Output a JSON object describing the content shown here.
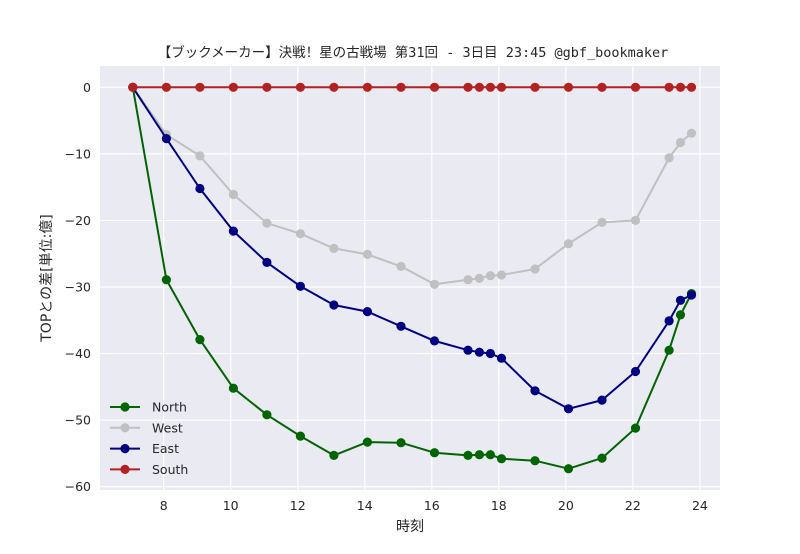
{
  "chart_data": {
    "type": "line",
    "title": "【ブックメーカー】決戦！星の古戦場 第31回 - 3日目 23:45 @gbf_bookmaker",
    "xlabel": "時刻",
    "ylabel": "TOPとの差[単位:億]",
    "xlim": [
      6.1,
      24.6
    ],
    "ylim": [
      -60.5,
      3.2
    ],
    "xticks": [
      8,
      10,
      12,
      14,
      16,
      18,
      20,
      22,
      24
    ],
    "yticks": [
      0,
      -10,
      -20,
      -30,
      -40,
      -50,
      -60
    ],
    "xtick_labels": [
      "8",
      "10",
      "12",
      "14",
      "16",
      "18",
      "20",
      "22",
      "24"
    ],
    "ytick_labels": [
      "0",
      "−10",
      "−20",
      "−30",
      "−40",
      "−50",
      "−60"
    ],
    "grid": true,
    "legend_position": "lower-left",
    "x": [
      7.08,
      8.08,
      9.08,
      10.08,
      11.08,
      12.08,
      13.08,
      14.08,
      15.08,
      16.08,
      17.08,
      17.42,
      17.75,
      18.08,
      19.08,
      20.08,
      21.08,
      22.08,
      23.08,
      23.42,
      23.75
    ],
    "series": [
      {
        "name": "North",
        "color": "#006400",
        "values": [
          0,
          -28.9,
          -37.9,
          -45.2,
          -49.2,
          -52.4,
          -55.3,
          -53.3,
          -53.4,
          -54.9,
          -55.3,
          -55.2,
          -55.2,
          -55.8,
          -56.1,
          -57.3,
          -55.7,
          -51.2,
          -39.5,
          -34.2,
          -31
        ]
      },
      {
        "name": "West",
        "color": "#c0c0c0",
        "values": [
          0,
          -7.1,
          -10.3,
          -16.1,
          -20.4,
          -22,
          -24.2,
          -25.1,
          -26.9,
          -29.6,
          -28.9,
          -28.7,
          -28.3,
          -28.2,
          -27.3,
          -23.5,
          -20.3,
          -20,
          -10.6,
          -8.3,
          -6.9
        ]
      },
      {
        "name": "East",
        "color": "#000080",
        "values": [
          0,
          -7.7,
          -15.2,
          -21.6,
          -26.3,
          -29.9,
          -32.7,
          -33.7,
          -35.9,
          -38.1,
          -39.5,
          -39.8,
          -40,
          -40.7,
          -45.6,
          -48.3,
          -47,
          -42.7,
          -35.1,
          -32,
          -31.2
        ]
      },
      {
        "name": "South",
        "color": "#b22222",
        "values": [
          0,
          0,
          0,
          0,
          0,
          0,
          0,
          0,
          0,
          0,
          0,
          0,
          0,
          0,
          0,
          0,
          0,
          0,
          0,
          0,
          0
        ]
      }
    ],
    "colors": {
      "plot_background": "#eaeaf2",
      "grid": "#ffffff"
    }
  }
}
